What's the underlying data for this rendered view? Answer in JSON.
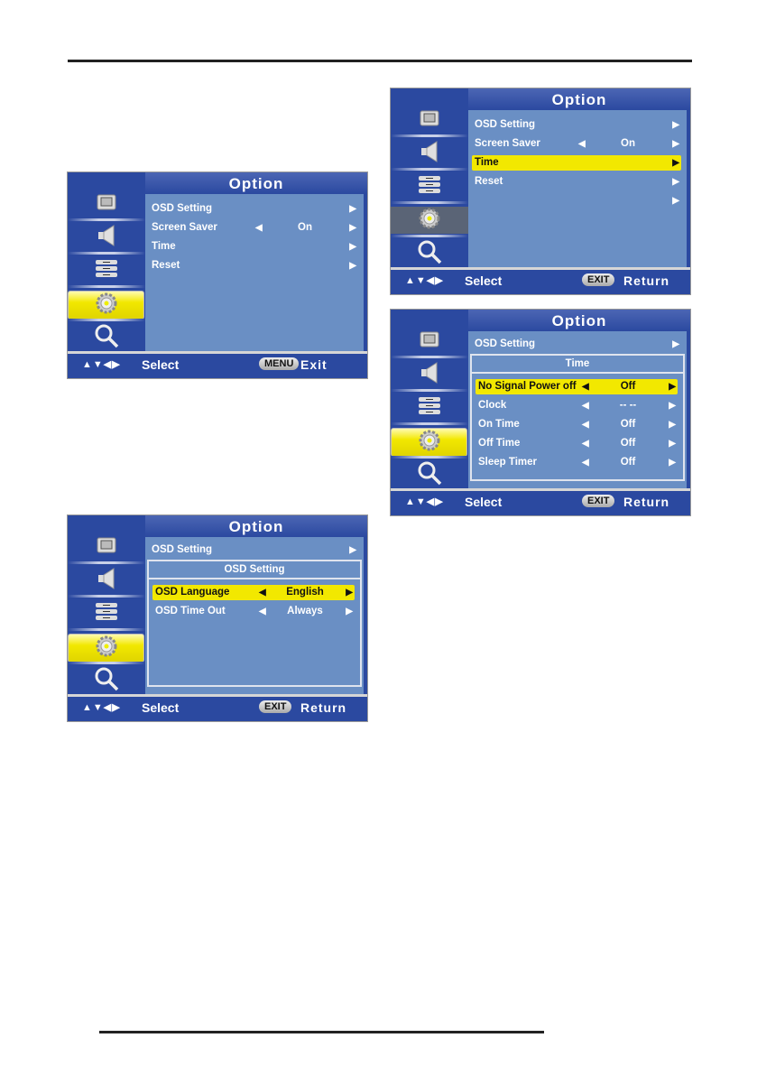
{
  "sidebar_icons": [
    "picture-icon",
    "sound-icon",
    "setup-icon",
    "option-gear-icon",
    "search-icon"
  ],
  "colors": {
    "panel": "#2b49a0",
    "content": "#6a8fc4",
    "highlight": "#f2e800"
  },
  "panels": [
    {
      "id": "option-main",
      "title": "Option",
      "sidebar_selected": 3,
      "sidebar_style": "yellow",
      "rows": [
        {
          "label": "OSD Setting",
          "value": "",
          "left_arrow": false
        },
        {
          "label": "Screen Saver",
          "value": "On",
          "left_arrow": true
        },
        {
          "label": "Time",
          "value": "",
          "left_arrow": false
        },
        {
          "label": "Reset",
          "value": "",
          "left_arrow": false
        }
      ],
      "highlight": -1,
      "footer": {
        "nav": "▲▼◀▶",
        "select": "Select",
        "key": "MENU",
        "action": "Exit"
      }
    },
    {
      "id": "option-time-selected",
      "title": "Option",
      "sidebar_selected": 3,
      "sidebar_style": "gray",
      "rows": [
        {
          "label": "OSD Setting",
          "value": "",
          "left_arrow": false
        },
        {
          "label": "Screen Saver",
          "value": "On",
          "left_arrow": true
        },
        {
          "label": "Time",
          "value": "",
          "left_arrow": false
        },
        {
          "label": "Reset",
          "value": "",
          "left_arrow": false
        },
        {
          "label": "",
          "value": "",
          "left_arrow": false
        }
      ],
      "highlight": 2,
      "footer": {
        "nav": "▲▼◀▶",
        "select": "Select",
        "key": "EXIT",
        "action": "Return"
      }
    },
    {
      "id": "time-submenu",
      "title": "Option",
      "sidebar_selected": 3,
      "sidebar_style": "yellow",
      "parent": "OSD Setting",
      "sub_title": "Time",
      "sub_rows": [
        {
          "label": "No Signal Power off",
          "value": "Off"
        },
        {
          "label": "Clock",
          "value": "-- --"
        },
        {
          "label": "On Time",
          "value": "Off"
        },
        {
          "label": "Off Time",
          "value": "Off"
        },
        {
          "label": "Sleep Timer",
          "value": "Off"
        }
      ],
      "highlight": 0,
      "footer": {
        "nav": "▲▼◀▶",
        "select": "Select",
        "key": "EXIT",
        "action": "Return"
      }
    },
    {
      "id": "osd-submenu",
      "title": "Option",
      "sidebar_selected": 3,
      "sidebar_style": "yellow",
      "parent": "OSD Setting",
      "sub_title": "OSD Setting",
      "sub_rows": [
        {
          "label": "OSD Language",
          "value": "English"
        },
        {
          "label": "OSD Time Out",
          "value": "Always"
        }
      ],
      "highlight": 0,
      "footer": {
        "nav": "▲▼◀▶",
        "select": "Select",
        "key": "EXIT",
        "action": "Return"
      }
    }
  ]
}
